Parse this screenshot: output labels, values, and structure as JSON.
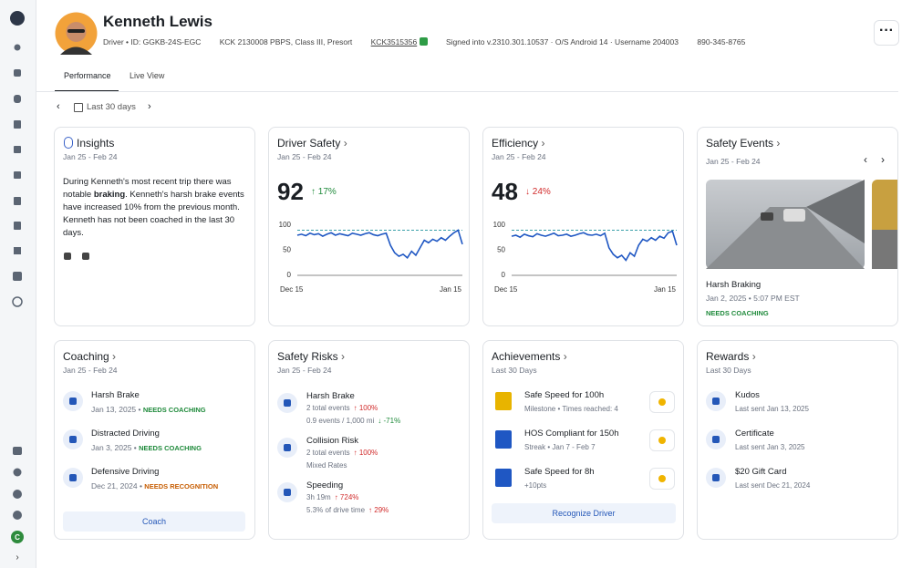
{
  "header": {
    "name": "Kenneth Lewis",
    "role": "Driver",
    "driver_id": "ID: GGKB-24S-EGC",
    "tags": "KCK 2130008 PBPS, Class III, Presort",
    "vehicle": "KCK3515356",
    "session": "Signed into v.2310.301.10537 · O/S Android 14 · Username 204003",
    "phone": "890-345-8765"
  },
  "sidebar": {
    "avatar_initial": "C"
  },
  "tabs": [
    "Performance",
    "Live View"
  ],
  "date_filter": "Last 30 days",
  "insights": {
    "title": "Insights",
    "range": "Jan 25 - Feb 24",
    "text_before": "During Kenneth's most recent trip there was notable ",
    "text_bold": "braking",
    "text_after": ". Kenneth's harsh brake events have increased 10% from the previous month. Kenneth has not been coached in the last 30 days."
  },
  "driver_safety": {
    "title": "Driver Safety",
    "range": "Jan 25 - Feb 24",
    "score": 92,
    "change": "17%",
    "chart": {
      "ylim": [
        0,
        100
      ],
      "yticks": [
        0,
        50,
        100
      ],
      "target": 90,
      "x_labels": [
        "Dec 15",
        "Jan 15"
      ],
      "values": [
        80,
        82,
        79,
        84,
        81,
        83,
        78,
        82,
        85,
        80,
        83,
        81,
        79,
        84,
        82,
        80,
        83,
        85,
        81,
        79,
        82,
        84,
        60,
        45,
        38,
        42,
        35,
        48,
        40,
        55,
        70,
        65,
        72,
        68,
        75,
        70,
        78,
        85,
        90,
        62
      ]
    }
  },
  "efficiency": {
    "title": "Efficiency",
    "range": "Jan 25 - Feb 24",
    "score": 48,
    "change": "24%",
    "chart": {
      "ylim": [
        0,
        100
      ],
      "yticks": [
        0,
        50,
        100
      ],
      "target": 90,
      "x_labels": [
        "Dec 15",
        "Jan 15"
      ],
      "values": [
        78,
        80,
        76,
        82,
        79,
        77,
        83,
        80,
        78,
        81,
        84,
        79,
        80,
        82,
        78,
        80,
        83,
        85,
        81,
        80,
        82,
        79,
        84,
        55,
        42,
        35,
        40,
        30,
        45,
        38,
        60,
        72,
        68,
        75,
        70,
        78,
        74,
        85,
        88,
        60
      ]
    }
  },
  "safety_events": {
    "title": "Safety Events",
    "range": "Jan 25 - Feb 24",
    "event": "Harsh Braking",
    "date": "Jan 2, 2025",
    "time": "5:07 PM EST",
    "status": "NEEDS COACHING"
  },
  "coaching": {
    "title": "Coaching",
    "range": "Jan 25 - Feb 24",
    "items": [
      {
        "name": "Harsh Brake",
        "date": "Jan 13, 2025",
        "status": "NEEDS COACHING"
      },
      {
        "name": "Distracted Driving",
        "date": "Jan 3, 2025",
        "status": "NEEDS COACHING"
      },
      {
        "name": "Defensive Driving",
        "date": "Dec 21, 2024",
        "status": "NEEDS RECOGNITION"
      }
    ],
    "button": "Coach"
  },
  "safety_risks": {
    "title": "Safety Risks",
    "range": "Jan 25 - Feb 24",
    "items": [
      {
        "name": "Harsh Brake",
        "line1": "2 total events",
        "change1": "100%",
        "line2": "0.9 events / 1,000 mi",
        "change2": "-71%"
      },
      {
        "name": "Collision Risk",
        "line1": "2 total events",
        "change1": "100%",
        "line2": "Mixed Rates"
      },
      {
        "name": "Speeding",
        "line1": "3h 19m",
        "change1": "724%",
        "line2": "5.3% of drive time",
        "change2": "29%"
      }
    ]
  },
  "achievements": {
    "title": "Achievements",
    "range": "Last 30 Days",
    "items": [
      {
        "name": "Safe Speed for 100h",
        "type": "Milestone",
        "detail": "Times reached: 4"
      },
      {
        "name": "HOS Compliant for 150h",
        "type": "Streak",
        "detail": "Jan 7 - Feb 7"
      },
      {
        "name": "Safe Speed for 8h",
        "type": "+10pts"
      }
    ],
    "button": "Recognize Driver"
  },
  "rewards": {
    "title": "Rewards",
    "range": "Last 30 Days",
    "items": [
      {
        "name": "Kudos",
        "detail": "Last sent Jan 13, 2025"
      },
      {
        "name": "Certificate",
        "detail": "Last sent Jan 3, 2025"
      },
      {
        "name": "$20 Gift Card",
        "detail": "Last sent Dec 21, 2024"
      }
    ]
  }
}
